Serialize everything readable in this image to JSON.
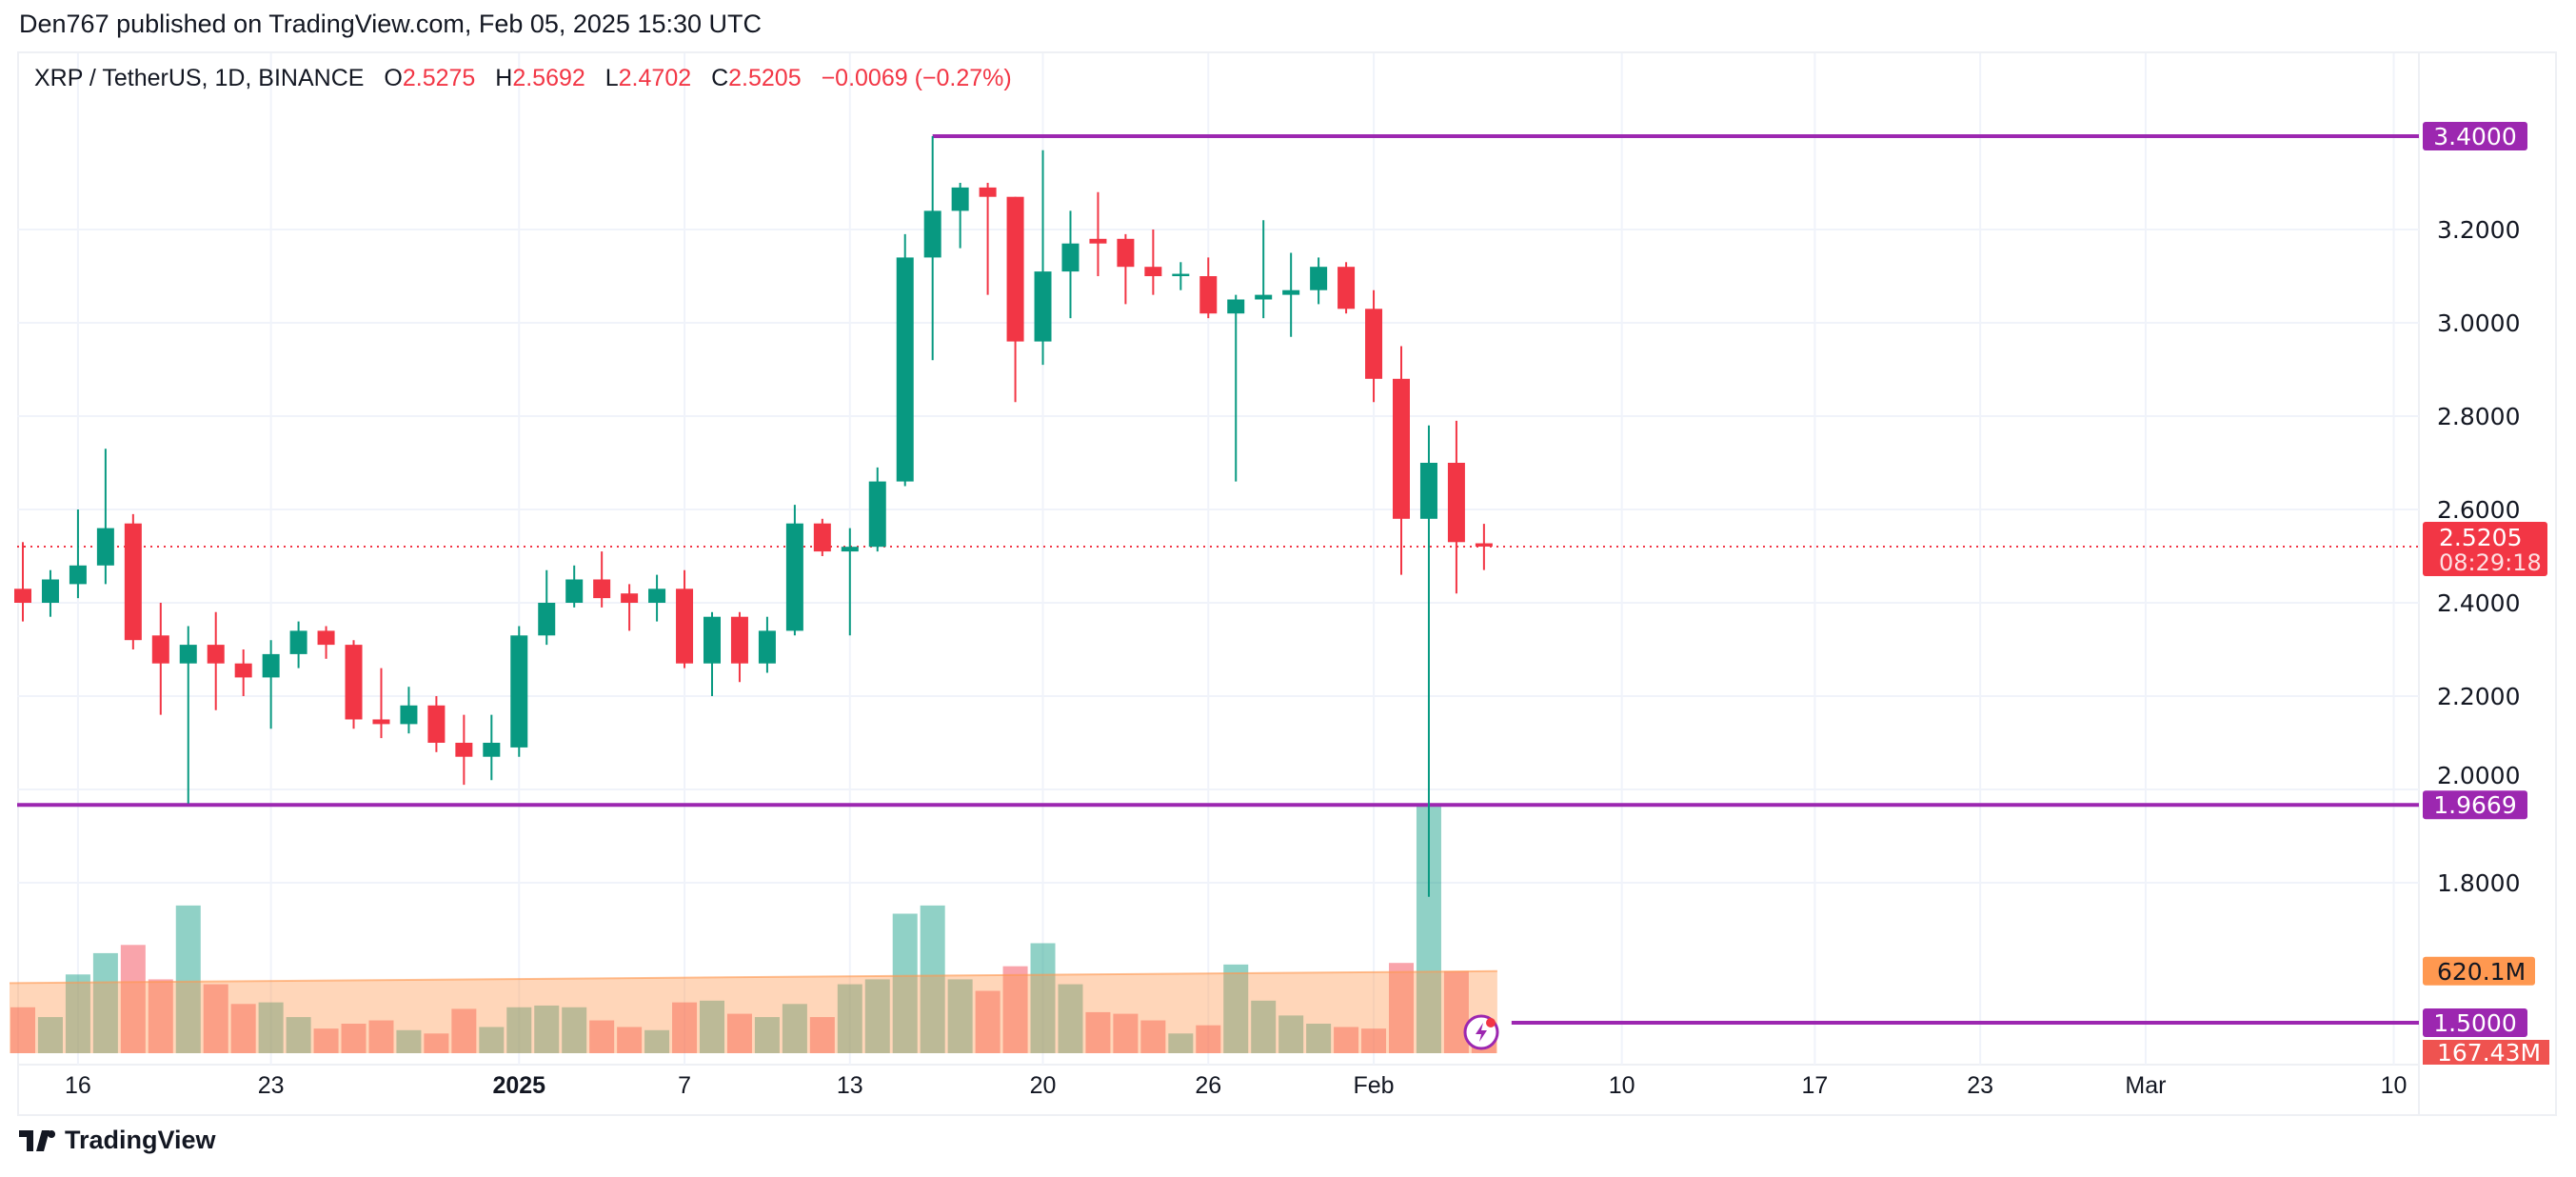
{
  "header": {
    "published": "Den767 published on TradingView.com, Feb 05, 2025 15:30 UTC"
  },
  "legend": {
    "symbol": "XRP / TetherUS, 1D, BINANCE",
    "o_label": "O",
    "o": "2.5275",
    "h_label": "H",
    "h": "2.5692",
    "l_label": "L",
    "l": "2.4702",
    "c_label": "C",
    "c": "2.5205",
    "change": "−0.0069 (−0.27%)"
  },
  "footer": {
    "brand": "TradingView",
    "logo_icon": "tradingview-logo-icon"
  },
  "colors": {
    "up": "#089981",
    "down": "#F23645",
    "level": "#9C27B0",
    "volume_ma": "#FF9850"
  },
  "chart_data": {
    "type": "candlestick",
    "title": "XRP / TetherUS, 1D, BINANCE",
    "ylim": [
      1.34,
      3.52
    ],
    "y_ticks": [
      "3.2000",
      "3.0000",
      "2.8000",
      "2.6000",
      "2.4000",
      "2.2000",
      "2.0000",
      "1.8000"
    ],
    "y_tick_values": [
      3.2,
      3.0,
      2.8,
      2.6,
      2.4,
      2.2,
      2.0,
      1.8
    ],
    "x_ticks": [
      {
        "label": "16",
        "day": 2
      },
      {
        "label": "23",
        "day": 9
      },
      {
        "label": "2025",
        "day": 18,
        "bold": true
      },
      {
        "label": "7",
        "day": 24
      },
      {
        "label": "13",
        "day": 30
      },
      {
        "label": "20",
        "day": 37
      },
      {
        "label": "26",
        "day": 43
      },
      {
        "label": "Feb",
        "day": 49
      },
      {
        "label": "10",
        "day": 58
      },
      {
        "label": "17",
        "day": 65
      },
      {
        "label": "23",
        "day": 71
      },
      {
        "label": "Mar",
        "day": 77
      },
      {
        "label": "10",
        "day": 86
      }
    ],
    "candles_columns": [
      "date",
      "open",
      "high",
      "low",
      "close",
      "volume_M"
    ],
    "candles": [
      [
        "2024-12-14",
        2.43,
        2.53,
        2.36,
        2.4,
        347
      ],
      [
        "2024-12-15",
        2.4,
        2.47,
        2.37,
        2.45,
        273
      ],
      [
        "2024-12-16",
        2.44,
        2.6,
        2.41,
        2.48,
        595
      ],
      [
        "2024-12-17",
        2.48,
        2.73,
        2.44,
        2.56,
        756
      ],
      [
        "2024-12-18",
        2.57,
        2.59,
        2.3,
        2.32,
        818
      ],
      [
        "2024-12-19",
        2.33,
        2.4,
        2.16,
        2.27,
        558
      ],
      [
        "2024-12-20",
        2.27,
        2.35,
        1.97,
        2.31,
        1116
      ],
      [
        "2024-12-21",
        2.31,
        2.38,
        2.17,
        2.27,
        521
      ],
      [
        "2024-12-22",
        2.27,
        2.3,
        2.2,
        2.24,
        372
      ],
      [
        "2024-12-23",
        2.24,
        2.32,
        2.13,
        2.29,
        384
      ],
      [
        "2024-12-24",
        2.29,
        2.36,
        2.26,
        2.34,
        273
      ],
      [
        "2024-12-25",
        2.34,
        2.35,
        2.28,
        2.31,
        186
      ],
      [
        "2024-12-26",
        2.31,
        2.32,
        2.13,
        2.15,
        223
      ],
      [
        "2024-12-27",
        2.15,
        2.26,
        2.11,
        2.14,
        248
      ],
      [
        "2024-12-28",
        2.14,
        2.22,
        2.12,
        2.18,
        174
      ],
      [
        "2024-12-29",
        2.18,
        2.2,
        2.08,
        2.1,
        149
      ],
      [
        "2024-12-30",
        2.1,
        2.16,
        2.01,
        2.07,
        335
      ],
      [
        "2024-12-31",
        2.07,
        2.16,
        2.02,
        2.1,
        198
      ],
      [
        "2025-01-01",
        2.09,
        2.35,
        2.07,
        2.33,
        347
      ],
      [
        "2025-01-02",
        2.33,
        2.47,
        2.31,
        2.4,
        360
      ],
      [
        "2025-01-03",
        2.4,
        2.48,
        2.39,
        2.45,
        347
      ],
      [
        "2025-01-04",
        2.45,
        2.51,
        2.39,
        2.41,
        248
      ],
      [
        "2025-01-05",
        2.42,
        2.44,
        2.34,
        2.4,
        198
      ],
      [
        "2025-01-06",
        2.4,
        2.46,
        2.36,
        2.43,
        174
      ],
      [
        "2025-01-07",
        2.43,
        2.47,
        2.26,
        2.27,
        384
      ],
      [
        "2025-01-08",
        2.27,
        2.38,
        2.2,
        2.37,
        397
      ],
      [
        "2025-01-09",
        2.37,
        2.38,
        2.23,
        2.27,
        298
      ],
      [
        "2025-01-10",
        2.27,
        2.37,
        2.25,
        2.34,
        273
      ],
      [
        "2025-01-11",
        2.34,
        2.61,
        2.33,
        2.57,
        372
      ],
      [
        "2025-01-12",
        2.57,
        2.58,
        2.5,
        2.51,
        273
      ],
      [
        "2025-01-13",
        2.51,
        2.56,
        2.33,
        2.52,
        521
      ],
      [
        "2025-01-14",
        2.52,
        2.69,
        2.51,
        2.66,
        558
      ],
      [
        "2025-01-15",
        2.66,
        3.19,
        2.65,
        3.14,
        1054
      ],
      [
        "2025-01-16",
        3.14,
        3.4,
        2.92,
        3.24,
        1116
      ],
      [
        "2025-01-17",
        3.24,
        3.3,
        3.16,
        3.29,
        558
      ],
      [
        "2025-01-18",
        3.29,
        3.3,
        3.06,
        3.27,
        471
      ],
      [
        "2025-01-19",
        3.27,
        3.27,
        2.83,
        2.96,
        657
      ],
      [
        "2025-01-20",
        2.96,
        3.37,
        2.91,
        3.11,
        831
      ],
      [
        "2025-01-21",
        3.11,
        3.24,
        3.01,
        3.17,
        521
      ],
      [
        "2025-01-22",
        3.18,
        3.28,
        3.1,
        3.17,
        310
      ],
      [
        "2025-01-23",
        3.18,
        3.19,
        3.04,
        3.12,
        298
      ],
      [
        "2025-01-24",
        3.12,
        3.2,
        3.06,
        3.1,
        248
      ],
      [
        "2025-01-25",
        3.1,
        3.13,
        3.07,
        3.105,
        149
      ],
      [
        "2025-01-26",
        3.1,
        3.14,
        3.01,
        3.02,
        211
      ],
      [
        "2025-01-27",
        3.02,
        3.06,
        2.66,
        3.05,
        670
      ],
      [
        "2025-01-28",
        3.05,
        3.22,
        3.01,
        3.06,
        397
      ],
      [
        "2025-01-29",
        3.06,
        3.15,
        2.97,
        3.07,
        285
      ],
      [
        "2025-01-30",
        3.07,
        3.14,
        3.04,
        3.12,
        223
      ],
      [
        "2025-01-31",
        3.12,
        3.13,
        3.02,
        3.03,
        198
      ],
      [
        "2025-02-01",
        3.03,
        3.07,
        2.83,
        2.88,
        186
      ],
      [
        "2025-02-02",
        2.88,
        2.95,
        2.46,
        2.58,
        682
      ],
      [
        "2025-02-03",
        2.58,
        2.78,
        1.77,
        2.7,
        1872
      ],
      [
        "2025-02-04",
        2.7,
        2.79,
        2.42,
        2.53,
        620
      ],
      [
        "2025-02-05",
        2.5275,
        2.5692,
        2.4702,
        2.5205,
        167.43
      ]
    ],
    "volume_ma_start_M": 530,
    "volume_ma_end_M": 620.1,
    "levels": [
      {
        "label": "3.4000",
        "value": 3.4,
        "from_day": 33
      },
      {
        "label": "1.9669",
        "value": 1.9669,
        "from_day": -1
      },
      {
        "label": "1.5000",
        "value": 1.5,
        "from_day": 54
      }
    ],
    "last_price": {
      "label": "2.5205",
      "countdown": "08:29:18",
      "value": 2.5205
    },
    "volume_ma_label": "620.1M",
    "last_volume_label": "167.43M"
  }
}
